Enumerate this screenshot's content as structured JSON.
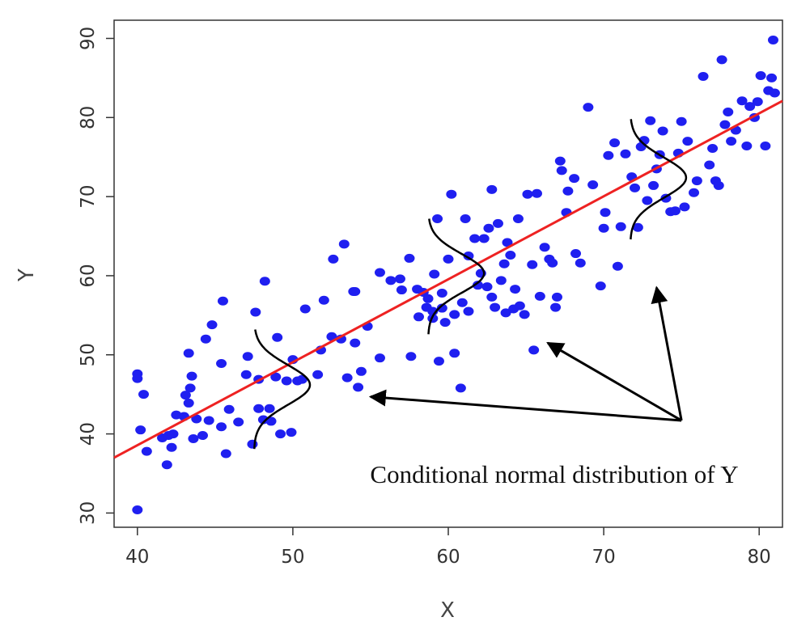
{
  "chart_data": {
    "type": "scatter",
    "title": "",
    "xlabel": "X",
    "ylabel": "Y",
    "xlim": [
      38.5,
      81.5
    ],
    "ylim": [
      28.2,
      92.3
    ],
    "x_ticks": [
      40,
      50,
      60,
      70,
      80
    ],
    "y_ticks": [
      30,
      40,
      50,
      60,
      70,
      80,
      90
    ],
    "grid": false,
    "legend": "none",
    "colors": {
      "points": "#1f1ff0",
      "regression_line": "#ee2222",
      "curves": "#000000",
      "arrows": "#000000"
    },
    "series": [
      {
        "points": [
          [
            40.0,
            30.4
          ],
          [
            40.0,
            47.6
          ],
          [
            40.0,
            47.0
          ],
          [
            40.2,
            40.5
          ],
          [
            40.4,
            45.0
          ],
          [
            40.6,
            37.8
          ],
          [
            41.6,
            39.5
          ],
          [
            41.9,
            36.1
          ],
          [
            42.0,
            39.8
          ],
          [
            42.2,
            38.3
          ],
          [
            42.3,
            40.0
          ],
          [
            42.5,
            42.4
          ],
          [
            43.0,
            42.2
          ],
          [
            43.1,
            44.9
          ],
          [
            43.3,
            50.2
          ],
          [
            43.3,
            43.9
          ],
          [
            43.4,
            45.8
          ],
          [
            43.5,
            47.3
          ],
          [
            43.6,
            39.4
          ],
          [
            43.8,
            41.9
          ],
          [
            44.2,
            39.8
          ],
          [
            44.4,
            52.0
          ],
          [
            44.6,
            41.7
          ],
          [
            44.8,
            53.8
          ],
          [
            45.4,
            40.9
          ],
          [
            45.4,
            48.9
          ],
          [
            45.5,
            56.8
          ],
          [
            45.7,
            37.5
          ],
          [
            45.9,
            43.1
          ],
          [
            46.5,
            41.5
          ],
          [
            47.0,
            47.5
          ],
          [
            47.1,
            49.8
          ],
          [
            47.4,
            38.7
          ],
          [
            47.6,
            55.4
          ],
          [
            47.8,
            43.2
          ],
          [
            47.8,
            46.9
          ],
          [
            48.1,
            41.8
          ],
          [
            48.2,
            59.3
          ],
          [
            48.5,
            43.2
          ],
          [
            48.6,
            41.6
          ],
          [
            48.9,
            47.2
          ],
          [
            49.0,
            52.2
          ],
          [
            49.2,
            40.0
          ],
          [
            49.6,
            46.7
          ],
          [
            49.9,
            40.2
          ],
          [
            50.0,
            49.4
          ],
          [
            50.3,
            46.7
          ],
          [
            50.6,
            46.9
          ],
          [
            50.8,
            55.8
          ],
          [
            51.6,
            47.5
          ],
          [
            51.8,
            50.6
          ],
          [
            52.0,
            56.9
          ],
          [
            52.5,
            52.3
          ],
          [
            52.6,
            62.1
          ],
          [
            53.1,
            52.0
          ],
          [
            53.3,
            64.0
          ],
          [
            53.5,
            47.1
          ],
          [
            53.9,
            58.0
          ],
          [
            54.0,
            58.0
          ],
          [
            54.0,
            51.5
          ],
          [
            54.2,
            45.9
          ],
          [
            54.4,
            47.9
          ],
          [
            54.8,
            53.6
          ],
          [
            55.6,
            60.4
          ],
          [
            55.6,
            49.6
          ],
          [
            56.3,
            59.4
          ],
          [
            56.9,
            59.6
          ],
          [
            57.0,
            58.2
          ],
          [
            57.5,
            62.2
          ],
          [
            57.6,
            49.8
          ],
          [
            58.0,
            58.3
          ],
          [
            58.1,
            54.8
          ],
          [
            58.4,
            57.9
          ],
          [
            58.6,
            56.0
          ],
          [
            58.7,
            57.1
          ],
          [
            59.0,
            55.5
          ],
          [
            59.0,
            54.6
          ],
          [
            59.1,
            60.2
          ],
          [
            59.3,
            67.2
          ],
          [
            59.4,
            49.2
          ],
          [
            59.6,
            55.9
          ],
          [
            59.6,
            57.8
          ],
          [
            59.8,
            54.1
          ],
          [
            60.0,
            62.1
          ],
          [
            60.2,
            70.3
          ],
          [
            60.4,
            50.2
          ],
          [
            60.4,
            55.1
          ],
          [
            60.8,
            45.8
          ],
          [
            60.9,
            56.6
          ],
          [
            61.1,
            67.2
          ],
          [
            61.3,
            55.5
          ],
          [
            61.3,
            62.5
          ],
          [
            61.7,
            64.7
          ],
          [
            61.9,
            58.8
          ],
          [
            62.1,
            60.3
          ],
          [
            62.3,
            64.7
          ],
          [
            62.5,
            58.6
          ],
          [
            62.6,
            66.0
          ],
          [
            62.8,
            70.9
          ],
          [
            62.8,
            57.3
          ],
          [
            63.0,
            56.0
          ],
          [
            63.2,
            66.6
          ],
          [
            63.4,
            59.4
          ],
          [
            63.6,
            61.5
          ],
          [
            63.7,
            55.3
          ],
          [
            63.8,
            64.2
          ],
          [
            64.0,
            62.6
          ],
          [
            64.2,
            55.8
          ],
          [
            64.3,
            58.3
          ],
          [
            64.5,
            67.2
          ],
          [
            64.6,
            56.2
          ],
          [
            64.9,
            55.1
          ],
          [
            65.1,
            70.3
          ],
          [
            65.4,
            61.4
          ],
          [
            65.5,
            50.6
          ],
          [
            65.7,
            70.4
          ],
          [
            65.9,
            57.4
          ],
          [
            66.2,
            63.6
          ],
          [
            66.5,
            62.1
          ],
          [
            66.7,
            61.6
          ],
          [
            66.9,
            56.0
          ],
          [
            67.0,
            57.3
          ],
          [
            67.2,
            74.5
          ],
          [
            67.3,
            73.3
          ],
          [
            67.6,
            68.0
          ],
          [
            67.7,
            70.7
          ],
          [
            68.1,
            72.3
          ],
          [
            68.2,
            62.8
          ],
          [
            68.5,
            61.6
          ],
          [
            69.0,
            81.3
          ],
          [
            69.3,
            71.5
          ],
          [
            69.8,
            58.7
          ],
          [
            70.0,
            66.0
          ],
          [
            70.1,
            68.0
          ],
          [
            70.3,
            75.2
          ],
          [
            70.7,
            76.8
          ],
          [
            70.9,
            61.2
          ],
          [
            71.1,
            66.2
          ],
          [
            71.4,
            75.4
          ],
          [
            71.8,
            72.5
          ],
          [
            72.0,
            71.1
          ],
          [
            72.2,
            66.1
          ],
          [
            72.4,
            76.3
          ],
          [
            72.6,
            77.1
          ],
          [
            72.8,
            69.5
          ],
          [
            73.0,
            79.6
          ],
          [
            73.2,
            71.4
          ],
          [
            73.4,
            73.5
          ],
          [
            73.6,
            75.3
          ],
          [
            73.8,
            78.3
          ],
          [
            74.0,
            69.8
          ],
          [
            74.3,
            68.1
          ],
          [
            74.6,
            68.2
          ],
          [
            74.8,
            75.5
          ],
          [
            75.0,
            79.5
          ],
          [
            75.2,
            68.7
          ],
          [
            75.4,
            77.0
          ],
          [
            75.8,
            70.5
          ],
          [
            76.0,
            72.0
          ],
          [
            76.4,
            85.2
          ],
          [
            76.8,
            74.0
          ],
          [
            77.0,
            76.1
          ],
          [
            77.2,
            72.0
          ],
          [
            77.4,
            71.4
          ],
          [
            77.6,
            87.3
          ],
          [
            77.8,
            79.1
          ],
          [
            78.0,
            80.7
          ],
          [
            78.2,
            77.0
          ],
          [
            78.5,
            78.4
          ],
          [
            78.9,
            82.1
          ],
          [
            79.2,
            76.4
          ],
          [
            79.4,
            81.4
          ],
          [
            79.7,
            80.0
          ],
          [
            79.9,
            82.0
          ],
          [
            80.1,
            85.3
          ],
          [
            80.4,
            76.4
          ],
          [
            80.6,
            83.4
          ],
          [
            80.8,
            85.0
          ],
          [
            80.9,
            89.8
          ],
          [
            81.0,
            83.1
          ]
        ]
      }
    ],
    "regression_line": {
      "x": [
        38.5,
        81.5
      ],
      "y": [
        37.0,
        82.1
      ]
    },
    "conditional_distributions": [
      {
        "x": 47.5,
        "mean": 46.2,
        "y_range": [
          38.1,
          53.2
        ]
      },
      {
        "x": 58.7,
        "mean": 60.3,
        "y_range": [
          52.6,
          67.2
        ]
      },
      {
        "x": 71.7,
        "mean": 72.4,
        "y_range": [
          64.6,
          79.8
        ]
      }
    ],
    "annotation": {
      "text": "Conditional normal distribution of Y",
      "arrow_origin": [
        75.0,
        41.7
      ],
      "arrow_targets": [
        [
          55.0,
          44.7
        ],
        [
          66.4,
          51.5
        ],
        [
          73.4,
          58.5
        ]
      ]
    }
  }
}
